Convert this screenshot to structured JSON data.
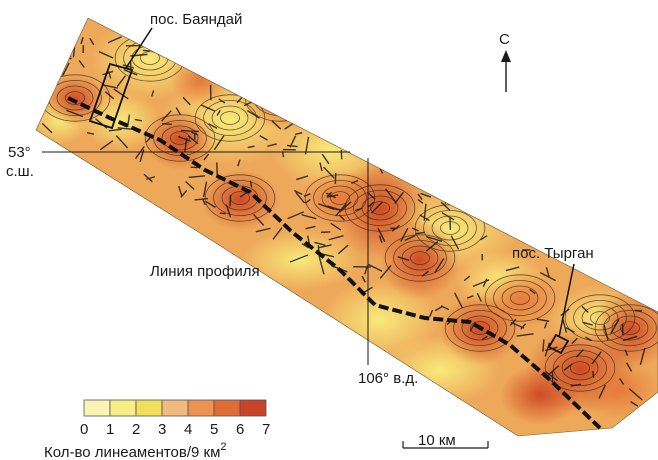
{
  "labels": {
    "bayandai": "пос. Баяндай",
    "tyrgan": "пос. Тырган",
    "north": "С",
    "lat": "53°",
    "lat_suffix": "с.ш.",
    "lon": "106° в.д.",
    "profile_line": "Линия профиля"
  },
  "legend": {
    "title": "Кол-во лineаментов/9 км",
    "title_fixed": "Кол-во линеаментов/9 км",
    "superscript": "2",
    "ticks": [
      "0",
      "1",
      "2",
      "3",
      "4",
      "5",
      "6",
      "7"
    ],
    "colors": [
      "#fbf3b6",
      "#f8ec84",
      "#f1df5c",
      "#efbb7c",
      "#ec9350",
      "#e06c35",
      "#c94426"
    ]
  },
  "scalebar": {
    "label": "10 км"
  }
}
